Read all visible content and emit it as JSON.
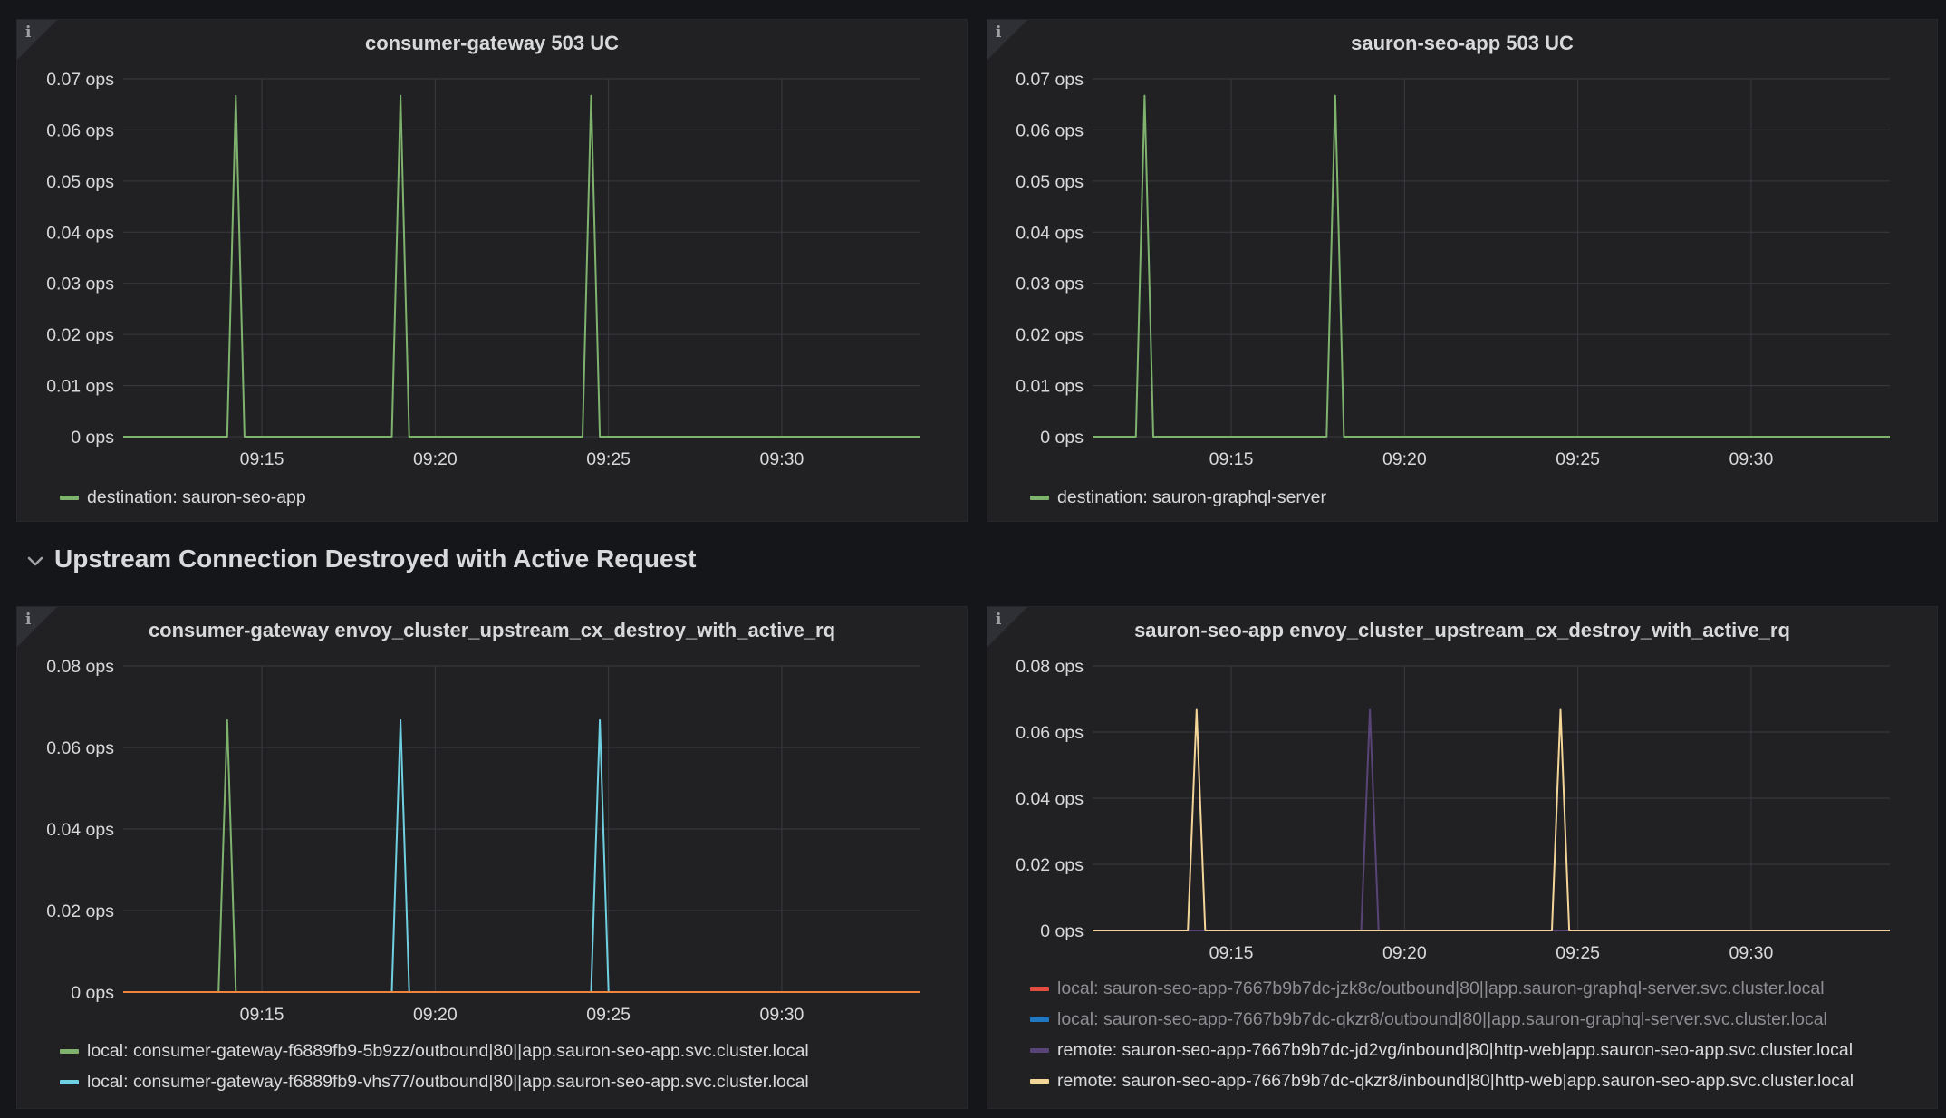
{
  "row": {
    "title": "Upstream Connection Destroyed with Active Request",
    "icon": "chevron-down-icon"
  },
  "panels": [
    {
      "title": "consumer-gateway 503 UC",
      "chart_data": {
        "type": "line",
        "title": "consumer-gateway 503 UC",
        "y_unit": "ops",
        "ylim": [
          0,
          0.07
        ],
        "y_ticks": [
          "0 ops",
          "0.01 ops",
          "0.02 ops",
          "0.03 ops",
          "0.04 ops",
          "0.05 ops",
          "0.06 ops",
          "0.07 ops"
        ],
        "x_ticks": [
          "09:15",
          "09:20",
          "09:25",
          "09:30"
        ],
        "xlim_minutes": [
          "09:11:00",
          "09:34:00"
        ],
        "grid": true,
        "legend_position": "bottom-left",
        "series": [
          {
            "name": "destination: sauron-seo-app",
            "color": "#7eb26d",
            "x": [
              "09:11:00",
              "09:14:00",
              "09:14:15",
              "09:14:30",
              "09:18:45",
              "09:19:00",
              "09:19:15",
              "09:24:15",
              "09:24:30",
              "09:24:45",
              "09:34:00"
            ],
            "y": [
              0,
              0,
              0.0667,
              0,
              0,
              0.0667,
              0,
              0,
              0.0667,
              0,
              0
            ]
          }
        ]
      }
    },
    {
      "title": "sauron-seo-app 503 UC",
      "chart_data": {
        "type": "line",
        "title": "sauron-seo-app 503 UC",
        "y_unit": "ops",
        "ylim": [
          0,
          0.07
        ],
        "y_ticks": [
          "0 ops",
          "0.01 ops",
          "0.02 ops",
          "0.03 ops",
          "0.04 ops",
          "0.05 ops",
          "0.06 ops",
          "0.07 ops"
        ],
        "x_ticks": [
          "09:15",
          "09:20",
          "09:25",
          "09:30"
        ],
        "xlim_minutes": [
          "09:11:00",
          "09:34:00"
        ],
        "grid": true,
        "legend_position": "bottom-left",
        "series": [
          {
            "name": "destination: sauron-graphql-server",
            "color": "#7eb26d",
            "x": [
              "09:11:00",
              "09:12:15",
              "09:12:30",
              "09:12:45",
              "09:17:45",
              "09:18:00",
              "09:18:15",
              "09:34:00"
            ],
            "y": [
              0,
              0,
              0.0667,
              0,
              0,
              0.0667,
              0,
              0
            ]
          }
        ]
      }
    },
    {
      "title": "consumer-gateway envoy_cluster_upstream_cx_destroy_with_active_rq",
      "chart_data": {
        "type": "line",
        "title": "consumer-gateway envoy_cluster_upstream_cx_destroy_with_active_rq",
        "y_unit": "ops",
        "ylim": [
          0,
          0.08
        ],
        "y_ticks": [
          "0 ops",
          "0.02 ops",
          "0.04 ops",
          "0.06 ops",
          "0.08 ops"
        ],
        "x_ticks": [
          "09:15",
          "09:20",
          "09:25",
          "09:30"
        ],
        "xlim_minutes": [
          "09:11:00",
          "09:34:00"
        ],
        "grid": true,
        "legend_position": "bottom-left",
        "series": [
          {
            "name": "local: consumer-gateway-f6889fb9-5b9zz/outbound|80||app.sauron-seo-app.svc.cluster.local",
            "color": "#7eb26d",
            "x": [
              "09:11:00",
              "09:13:45",
              "09:14:00",
              "09:14:15",
              "09:34:00"
            ],
            "y": [
              0,
              0,
              0.0667,
              0,
              0
            ]
          },
          {
            "name": "local: consumer-gateway-f6889fb9-vhs77/outbound|80||app.sauron-seo-app.svc.cluster.local",
            "color": "#6ed0e0",
            "x": [
              "09:11:00",
              "09:18:45",
              "09:19:00",
              "09:19:15",
              "09:24:30",
              "09:24:45",
              "09:25:00",
              "09:34:00"
            ],
            "y": [
              0,
              0,
              0.0667,
              0,
              0,
              0.0667,
              0,
              0
            ]
          },
          {
            "name": "",
            "color": "#ef843c",
            "x": [
              "09:11:00",
              "09:34:00"
            ],
            "y": [
              0,
              0
            ]
          }
        ]
      }
    },
    {
      "title": "sauron-seo-app envoy_cluster_upstream_cx_destroy_with_active_rq",
      "chart_data": {
        "type": "line",
        "title": "sauron-seo-app envoy_cluster_upstream_cx_destroy_with_active_rq",
        "y_unit": "ops",
        "ylim": [
          0,
          0.08
        ],
        "y_ticks": [
          "0 ops",
          "0.02 ops",
          "0.04 ops",
          "0.06 ops",
          "0.08 ops"
        ],
        "x_ticks": [
          "09:15",
          "09:20",
          "09:25",
          "09:30"
        ],
        "xlim_minutes": [
          "09:11:00",
          "09:34:00"
        ],
        "grid": true,
        "legend_position": "bottom-left",
        "series": [
          {
            "name": "local: sauron-seo-app-7667b9b7dc-jzk8c/outbound|80||app.sauron-graphql-server.svc.cluster.local",
            "color": "#e24d42",
            "x": [
              "09:11:00",
              "09:34:00"
            ],
            "y": [
              0,
              0
            ],
            "dim": true
          },
          {
            "name": "local: sauron-seo-app-7667b9b7dc-qkzr8/outbound|80||app.sauron-graphql-server.svc.cluster.local",
            "color": "#1f78c1",
            "x": [
              "09:11:00",
              "09:34:00"
            ],
            "y": [
              0,
              0
            ],
            "dim": true
          },
          {
            "name": "remote: sauron-seo-app-7667b9b7dc-jd2vg/inbound|80|http-web|app.sauron-seo-app.svc.cluster.local",
            "color": "#584477",
            "x": [
              "09:11:00",
              "09:18:45",
              "09:19:00",
              "09:19:15",
              "09:34:00"
            ],
            "y": [
              0,
              0,
              0.0667,
              0,
              0
            ]
          },
          {
            "name": "remote: sauron-seo-app-7667b9b7dc-qkzr8/inbound|80|http-web|app.sauron-seo-app.svc.cluster.local",
            "color": "#f4d598",
            "x": [
              "09:11:00",
              "09:13:45",
              "09:14:00",
              "09:14:15",
              "09:24:15",
              "09:24:30",
              "09:24:45",
              "09:34:00"
            ],
            "y": [
              0,
              0,
              0.0667,
              0,
              0,
              0.0667,
              0,
              0
            ]
          }
        ]
      }
    }
  ]
}
